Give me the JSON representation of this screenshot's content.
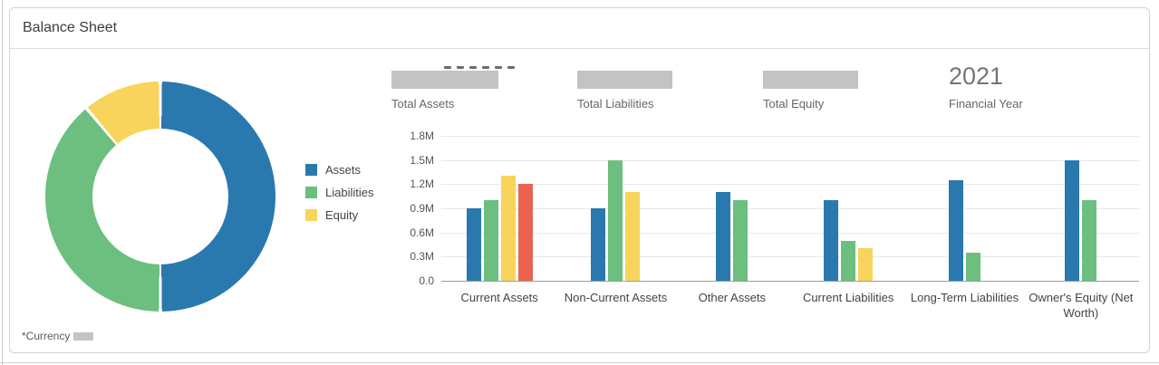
{
  "header": {
    "title": "Balance Sheet"
  },
  "kpi_row": {
    "items": [
      {
        "id": "total-assets",
        "label": "Total Assets",
        "value": null,
        "value_redacted": true,
        "peek_text_visible": true
      },
      {
        "id": "total-liabilities",
        "label": "Total Liabilities",
        "value": null,
        "value_redacted": true,
        "peek_text_visible": false
      },
      {
        "id": "total-equity",
        "label": "Total Equity",
        "value": null,
        "value_redacted": true,
        "peek_text_visible": false
      },
      {
        "id": "financial-year",
        "label": "Financial Year",
        "value": "2021",
        "value_redacted": false,
        "peek_text_visible": false
      }
    ]
  },
  "legend": {
    "items": [
      {
        "label": "Assets",
        "color": "#2979ae"
      },
      {
        "label": "Liabilities",
        "color": "#6cbf7e"
      },
      {
        "label": "Equity",
        "color": "#f8d45c"
      }
    ]
  },
  "footnote": {
    "label": "*Currency",
    "value_redacted": true
  },
  "colors": {
    "assets_blue": "#2979ae",
    "liabilities_green": "#6cbf7e",
    "equity_yellow": "#f8d45c",
    "extra_red": "#e96350",
    "redaction_gray": "#c3c3c3"
  },
  "chart_data": [
    {
      "type": "pie",
      "variant": "donut",
      "title": "Balance Sheet composition (donut)",
      "labels": [
        "Assets",
        "Liabilities",
        "Equity"
      ],
      "values_percent": [
        50,
        38.9,
        11.1
      ],
      "colors": [
        "#2979ae",
        "#6cbf7e",
        "#f8d45c"
      ],
      "legend_position": "right"
    },
    {
      "type": "bar",
      "title": "Balance Sheet breakdown (grouped bars, values in millions)",
      "categories": [
        "Current Assets",
        "Non-Current Assets",
        "Other Assets",
        "Current Liabilities",
        "Long-Term Liabilities",
        "Owner's Equity (Net Worth)"
      ],
      "series": [
        {
          "name": "Assets",
          "color": "#2979ae",
          "values": [
            0.9,
            0.9,
            1.1,
            1.0,
            1.25,
            1.5
          ]
        },
        {
          "name": "Liabilities",
          "color": "#6cbf7e",
          "values": [
            1.0,
            1.5,
            1.0,
            0.5,
            0.35,
            1.0
          ]
        },
        {
          "name": "Equity",
          "color": "#f8d45c",
          "values": [
            1.3,
            1.1,
            null,
            0.4,
            null,
            null
          ]
        },
        {
          "name": "",
          "color": "#e96350",
          "values": [
            1.2,
            null,
            null,
            null,
            null,
            null
          ]
        }
      ],
      "unit": "M",
      "ylabel": "",
      "xlabel": "",
      "ylim": [
        0,
        1.8
      ],
      "y_ticks": [
        "0.0",
        "0.3M",
        "0.6M",
        "0.9M",
        "1.2M",
        "1.5M",
        "1.8M"
      ],
      "grid": true,
      "legend_position": "left"
    }
  ]
}
